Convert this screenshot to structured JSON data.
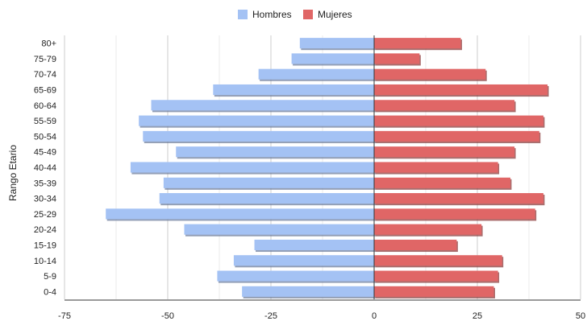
{
  "chart_data": {
    "type": "bar",
    "orientation": "horizontal",
    "stacked": true,
    "ylabel": "Rango Etario",
    "xlabel": "",
    "categories": [
      "80+",
      "75-79",
      "70-74",
      "65-69",
      "60-64",
      "55-59",
      "50-54",
      "45-49",
      "40-44",
      "35-39",
      "30-34",
      "25-29",
      "20-24",
      "15-19",
      "10-14",
      "5-9",
      "0-4"
    ],
    "series": [
      {
        "name": "Hombres",
        "color": "#a4c2f4",
        "values": [
          -18,
          -20,
          -28,
          -39,
          -54,
          -57,
          -56,
          -48,
          -59,
          -51,
          -52,
          -65,
          -46,
          -29,
          -34,
          -38,
          -32
        ]
      },
      {
        "name": "Mujeres",
        "color": "#e06666",
        "values": [
          21,
          11,
          27,
          42,
          34,
          41,
          40,
          34,
          30,
          33,
          41,
          39,
          26,
          20,
          31,
          30,
          29
        ]
      }
    ],
    "xlim": [
      -75,
      50
    ],
    "xticks": [
      -75,
      -50,
      -25,
      0,
      25,
      50
    ],
    "xtick_labels": [
      "-75",
      "-50",
      "-25",
      "0",
      "25",
      "50"
    ],
    "grid": true,
    "legend_position": "top"
  }
}
